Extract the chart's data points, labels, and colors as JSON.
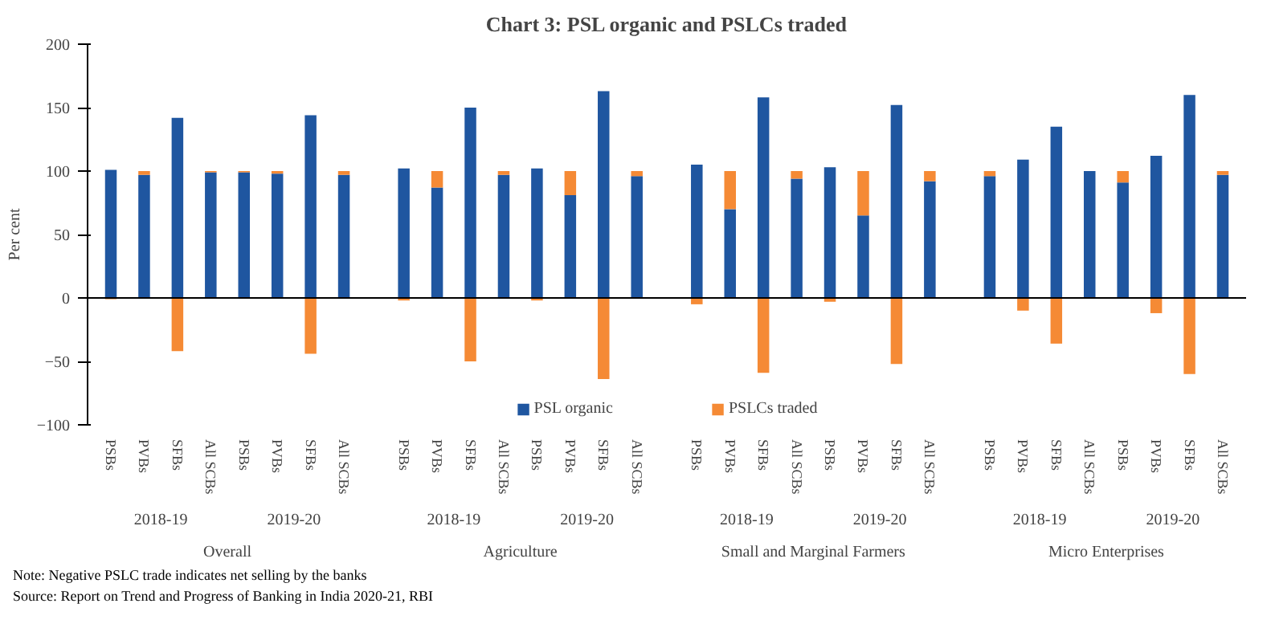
{
  "chart_data": {
    "type": "bar",
    "title": "Chart 3: PSL organic and PSLCs traded",
    "ylabel": "Per cent",
    "categories": [
      "PSBs",
      "PVBs",
      "SFBs",
      "All SCBs",
      "PSBs",
      "PVBs",
      "SFBs",
      "All SCBs",
      "PSBs",
      "PVBs",
      "SFBs",
      "All SCBs",
      "PSBs",
      "PVBs",
      "SFBs",
      "All SCBs",
      "PSBs",
      "PVBs",
      "SFBs",
      "All SCBs",
      "PSBs",
      "PVBs",
      "SFBs",
      "All SCBs",
      "PSBs",
      "PVBs",
      "SFBs",
      "All SCBs",
      "PSBs",
      "PVBs",
      "SFBs",
      "All SCBs"
    ],
    "annotations": [
      "2018-19",
      "2019-20",
      "2018-19",
      "2019-20",
      "2018-19",
      "2019-20",
      "2018-19",
      "2019-20",
      "Overall",
      "Agriculture",
      "Small and Marginal Farmers",
      "Micro Enterprises",
      "Note: Negative PSLC trade indicates net selling by the banks",
      "Source: Report on Trend and Progress of Banking in India 2020-21, RBI"
    ],
    "stacked": true,
    "series": [
      {
        "name": "PSL organic",
        "color": "#1f56a0",
        "values": [
          101,
          97,
          142,
          99,
          99,
          98,
          144,
          97,
          102,
          87,
          150,
          97,
          102,
          81,
          163,
          96,
          105,
          70,
          158,
          94,
          103,
          65,
          152,
          92,
          96,
          109,
          135,
          100,
          91,
          112,
          160,
          97
        ]
      },
      {
        "name": "PSLCs traded",
        "color": "#f58a35",
        "values": [
          -1,
          3,
          -42,
          1,
          1,
          2,
          -44,
          3,
          -2,
          13,
          -50,
          3,
          -2,
          19,
          -64,
          4,
          -5,
          30,
          -59,
          6,
          -3,
          35,
          -52,
          8,
          4,
          -10,
          -36,
          0,
          9,
          -12,
          -60,
          3
        ]
      }
    ],
    "ylim": [
      -100,
      200
    ],
    "yticks": [
      -100,
      -50,
      0,
      50,
      100,
      150,
      200
    ],
    "ref_lines": [
      {
        "axis": "y",
        "value": 0,
        "color": "#000000"
      }
    ],
    "grid": false,
    "legend": "bottom"
  }
}
